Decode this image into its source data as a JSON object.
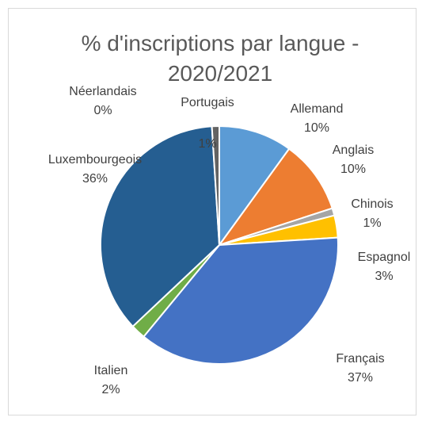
{
  "chart_data": {
    "type": "pie",
    "title": "% d'inscriptions par langue - 2020/2021",
    "categories": [
      "Allemand",
      "Anglais",
      "Chinois",
      "Espagnol",
      "Français",
      "Italien",
      "Luxembourgeois",
      "Néerlandais",
      "Portugais"
    ],
    "values": [
      10,
      10,
      1,
      3,
      37,
      2,
      36,
      0,
      1
    ],
    "value_labels": [
      "10%",
      "10%",
      "1%",
      "3%",
      "37%",
      "2%",
      "36%",
      "0%",
      "1%"
    ],
    "colors": [
      "#5b9bd5",
      "#ed7d31",
      "#a5a5a5",
      "#ffc000",
      "#4472c4",
      "#70ad47",
      "#255e91",
      "#9e480e",
      "#636363"
    ]
  }
}
